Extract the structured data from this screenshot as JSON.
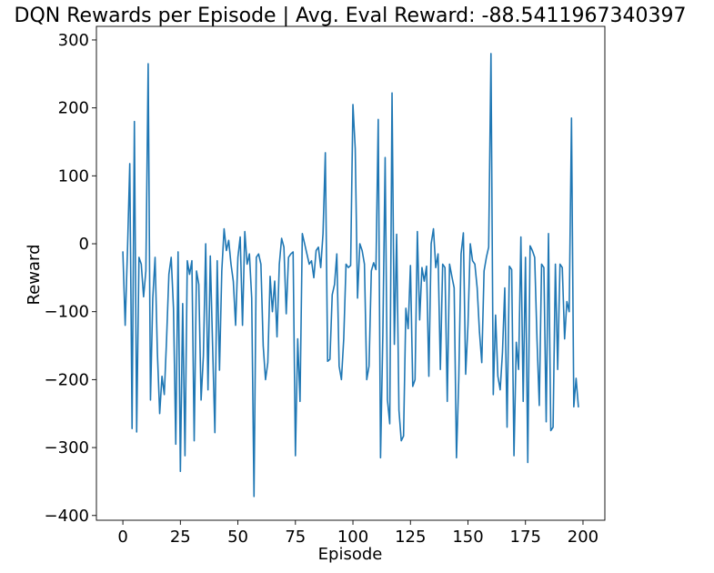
{
  "chart_data": {
    "type": "line",
    "title": "DQN Rewards per Episode | Avg. Eval Reward: -88.5411967340397",
    "xlabel": "Episode",
    "ylabel": "Reward",
    "xlim": [
      -11.5,
      209.5
    ],
    "ylim": [
      -407,
      320
    ],
    "xticks": [
      0,
      25,
      50,
      75,
      100,
      125,
      150,
      175,
      200
    ],
    "xtick_labels": [
      "0",
      "25",
      "50",
      "75",
      "100",
      "125",
      "150",
      "175",
      "200"
    ],
    "yticks": [
      300,
      200,
      100,
      0,
      -100,
      -200,
      -300,
      -400
    ],
    "ytick_labels": [
      "300",
      "200",
      "100",
      "0",
      "−100",
      "−200",
      "−300",
      "−400"
    ],
    "grid": false,
    "line_color": "#1f77b4",
    "series": [
      {
        "x_start": 0,
        "values": [
          -12,
          -120,
          -10,
          118,
          -272,
          180,
          -277,
          -20,
          -30,
          -78,
          -40,
          265,
          -230,
          -80,
          -20,
          -160,
          -250,
          -195,
          -222,
          -140,
          -45,
          -20,
          -95,
          -295,
          -12,
          -335,
          -88,
          -312,
          -25,
          -45,
          -25,
          -290,
          -40,
          -60,
          -230,
          -165,
          0,
          -215,
          -18,
          -150,
          -278,
          -25,
          -186,
          -40,
          22,
          -10,
          5,
          -30,
          -55,
          -120,
          -20,
          10,
          -120,
          18,
          -30,
          -15,
          -80,
          -372,
          -20,
          -15,
          -30,
          -150,
          -200,
          -175,
          -48,
          -100,
          -55,
          -137,
          -30,
          8,
          -5,
          -103,
          -20,
          -15,
          -12,
          -312,
          -140,
          -232,
          15,
          0,
          -15,
          -30,
          -25,
          -50,
          -10,
          -5,
          -35,
          15,
          134,
          -173,
          -170,
          -75,
          -60,
          -15,
          -180,
          -200,
          -140,
          -30,
          -35,
          -32,
          205,
          140,
          -80,
          0,
          -10,
          -30,
          -200,
          -180,
          -40,
          -28,
          -38,
          183,
          -315,
          -135,
          127,
          -230,
          -265,
          222,
          -148,
          14,
          -245,
          -290,
          -283,
          -95,
          -125,
          -32,
          -210,
          -200,
          18,
          -112,
          -35,
          -55,
          -33,
          -195,
          0,
          22,
          -35,
          -15,
          -185,
          -30,
          -35,
          -232,
          -30,
          -48,
          -65,
          -315,
          -200,
          -15,
          16,
          -192,
          -120,
          0,
          -25,
          -30,
          -65,
          -130,
          -175,
          -40,
          -20,
          -5,
          280,
          -222,
          -105,
          -195,
          -215,
          -160,
          -65,
          -270,
          -33,
          -38,
          -312,
          -145,
          -185,
          10,
          -232,
          -20,
          -322,
          -3,
          -10,
          -20,
          -140,
          -238,
          -30,
          -35,
          -262,
          15,
          -275,
          -270,
          -30,
          -185,
          -30,
          -35,
          -140,
          -85,
          -100,
          185,
          -240,
          -198,
          -240
        ]
      }
    ]
  }
}
